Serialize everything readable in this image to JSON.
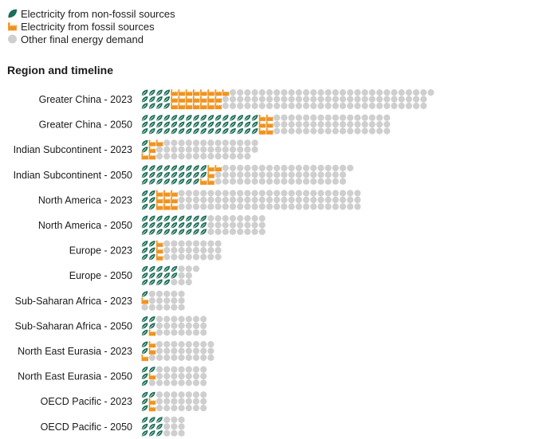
{
  "colors": {
    "nonfossil": "#1b6e57",
    "fossil": "#f0931e",
    "other": "#cfcfcf"
  },
  "legend": [
    {
      "key": "nonfossil",
      "label": "Electricity from non-fossil sources",
      "icon": "leaf-icon"
    },
    {
      "key": "fossil",
      "label": "Electricity from fossil sources",
      "icon": "factory-icon"
    },
    {
      "key": "other",
      "label": "Other final energy demand",
      "icon": "circle-icon"
    }
  ],
  "heading": "Region and timeline",
  "chart_data": {
    "type": "unit-chart",
    "series": [
      {
        "name": "Electricity from non-fossil sources",
        "key": "nonfossil"
      },
      {
        "name": "Electricity from fossil sources",
        "key": "fossil"
      },
      {
        "name": "Other final energy demand",
        "key": "other"
      }
    ],
    "rows": [
      {
        "label": "Greater China - 2023",
        "nonfossil": 12,
        "fossil": 22,
        "other": 84
      },
      {
        "label": "Greater China - 2050",
        "nonfossil": 48,
        "fossil": 6,
        "other": 48
      },
      {
        "label": "Indian Subcontinent - 2023",
        "nonfossil": 2,
        "fossil": 5,
        "other": 40
      },
      {
        "label": "Indian Subcontinent - 2050",
        "nonfossil": 26,
        "fossil": 5,
        "other": 54
      },
      {
        "label": "North America - 2023",
        "nonfossil": 6,
        "fossil": 9,
        "other": 75
      },
      {
        "label": "North America - 2050",
        "nonfossil": 27,
        "fossil": 0,
        "other": 24
      },
      {
        "label": "Europe - 2023",
        "nonfossil": 6,
        "fossil": 3,
        "other": 24
      },
      {
        "label": "Europe - 2050",
        "nonfossil": 14,
        "fossil": 0,
        "other": 8
      },
      {
        "label": "Sub-Saharan Africa - 2023",
        "nonfossil": 1,
        "fossil": 1,
        "other": 16
      },
      {
        "label": "Sub-Saharan Africa - 2050",
        "nonfossil": 5,
        "fossil": 1,
        "other": 21
      },
      {
        "label": "North East Eurasia - 2023",
        "nonfossil": 2,
        "fossil": 3,
        "other": 25
      },
      {
        "label": "North East Eurasia - 2050",
        "nonfossil": 4,
        "fossil": 1,
        "other": 22
      },
      {
        "label": "OECD Pacific - 2023",
        "nonfossil": 4,
        "fossil": 2,
        "other": 21
      },
      {
        "label": "OECD Pacific - 2050",
        "nonfossil": 9,
        "fossil": 0,
        "other": 9
      }
    ]
  }
}
